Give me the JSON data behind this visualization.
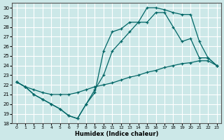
{
  "xlabel": "Humidex (Indice chaleur)",
  "background_color": "#cce8e8",
  "grid_color": "#ffffff",
  "line_color": "#006666",
  "xlim": [
    -0.5,
    23.5
  ],
  "ylim": [
    18,
    30.5
  ],
  "yticks": [
    18,
    19,
    20,
    21,
    22,
    23,
    24,
    25,
    26,
    27,
    28,
    29,
    30
  ],
  "xticks": [
    0,
    1,
    2,
    3,
    4,
    5,
    6,
    7,
    8,
    9,
    10,
    11,
    12,
    13,
    14,
    15,
    16,
    17,
    18,
    19,
    20,
    21,
    22,
    23
  ],
  "line1_x": [
    0,
    1,
    2,
    3,
    4,
    5,
    6,
    7,
    8,
    9,
    10,
    11,
    12,
    13,
    14,
    15,
    16,
    17,
    18,
    19,
    20,
    21,
    22,
    23
  ],
  "line1_y": [
    22.3,
    21.8,
    21.0,
    20.5,
    20.0,
    19.5,
    18.8,
    18.5,
    20.0,
    21.2,
    25.5,
    27.5,
    27.8,
    28.5,
    28.5,
    30.0,
    30.0,
    29.8,
    29.5,
    29.3,
    29.3,
    26.5,
    24.8,
    24.0
  ],
  "line2_x": [
    0,
    1,
    2,
    3,
    4,
    5,
    6,
    7,
    8,
    9,
    10,
    11,
    12,
    13,
    14,
    15,
    16,
    17,
    18,
    19,
    20,
    21,
    22,
    23
  ],
  "line2_y": [
    22.3,
    21.8,
    21.0,
    20.5,
    20.0,
    19.5,
    18.8,
    18.5,
    20.0,
    21.5,
    23.0,
    25.5,
    26.5,
    27.5,
    28.5,
    28.5,
    29.5,
    29.5,
    28.0,
    26.5,
    26.8,
    24.8,
    24.8,
    24.0
  ],
  "line3_x": [
    0,
    1,
    2,
    3,
    4,
    5,
    6,
    7,
    8,
    9,
    10,
    11,
    12,
    13,
    14,
    15,
    16,
    17,
    18,
    19,
    20,
    21,
    22,
    23
  ],
  "line3_y": [
    22.3,
    21.8,
    21.5,
    21.2,
    21.0,
    21.0,
    21.0,
    21.2,
    21.5,
    21.8,
    22.0,
    22.2,
    22.5,
    22.8,
    23.0,
    23.3,
    23.5,
    23.8,
    24.0,
    24.2,
    24.3,
    24.5,
    24.5,
    24.0
  ]
}
